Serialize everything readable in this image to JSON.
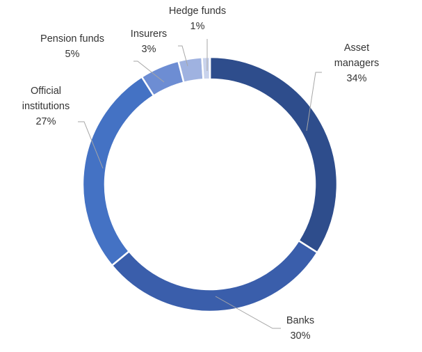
{
  "chart_data": {
    "type": "donut",
    "title": "",
    "legend": "none",
    "start_angle_deg": 0,
    "direction": "clockwise",
    "slices": [
      {
        "name": "Asset managers",
        "lines": [
          "Asset",
          "managers"
        ],
        "value": 34,
        "label": "34%",
        "color": "#2e4d8c"
      },
      {
        "name": "Banks",
        "lines": [
          "Banks"
        ],
        "value": 30,
        "label": "30%",
        "color": "#3a5eab"
      },
      {
        "name": "Official institutions",
        "lines": [
          "Official",
          "institutions"
        ],
        "value": 27,
        "label": "27%",
        "color": "#4472c4"
      },
      {
        "name": "Pension funds",
        "lines": [
          "Pension funds"
        ],
        "value": 5,
        "label": "5%",
        "color": "#6d8dd3"
      },
      {
        "name": "Insurers",
        "lines": [
          "Insurers"
        ],
        "value": 3,
        "label": "3%",
        "color": "#9fb2e0"
      },
      {
        "name": "Hedge funds",
        "lines": [
          "Hedge funds"
        ],
        "value": 1,
        "label": "1%",
        "color": "#c9d3ec"
      }
    ]
  }
}
